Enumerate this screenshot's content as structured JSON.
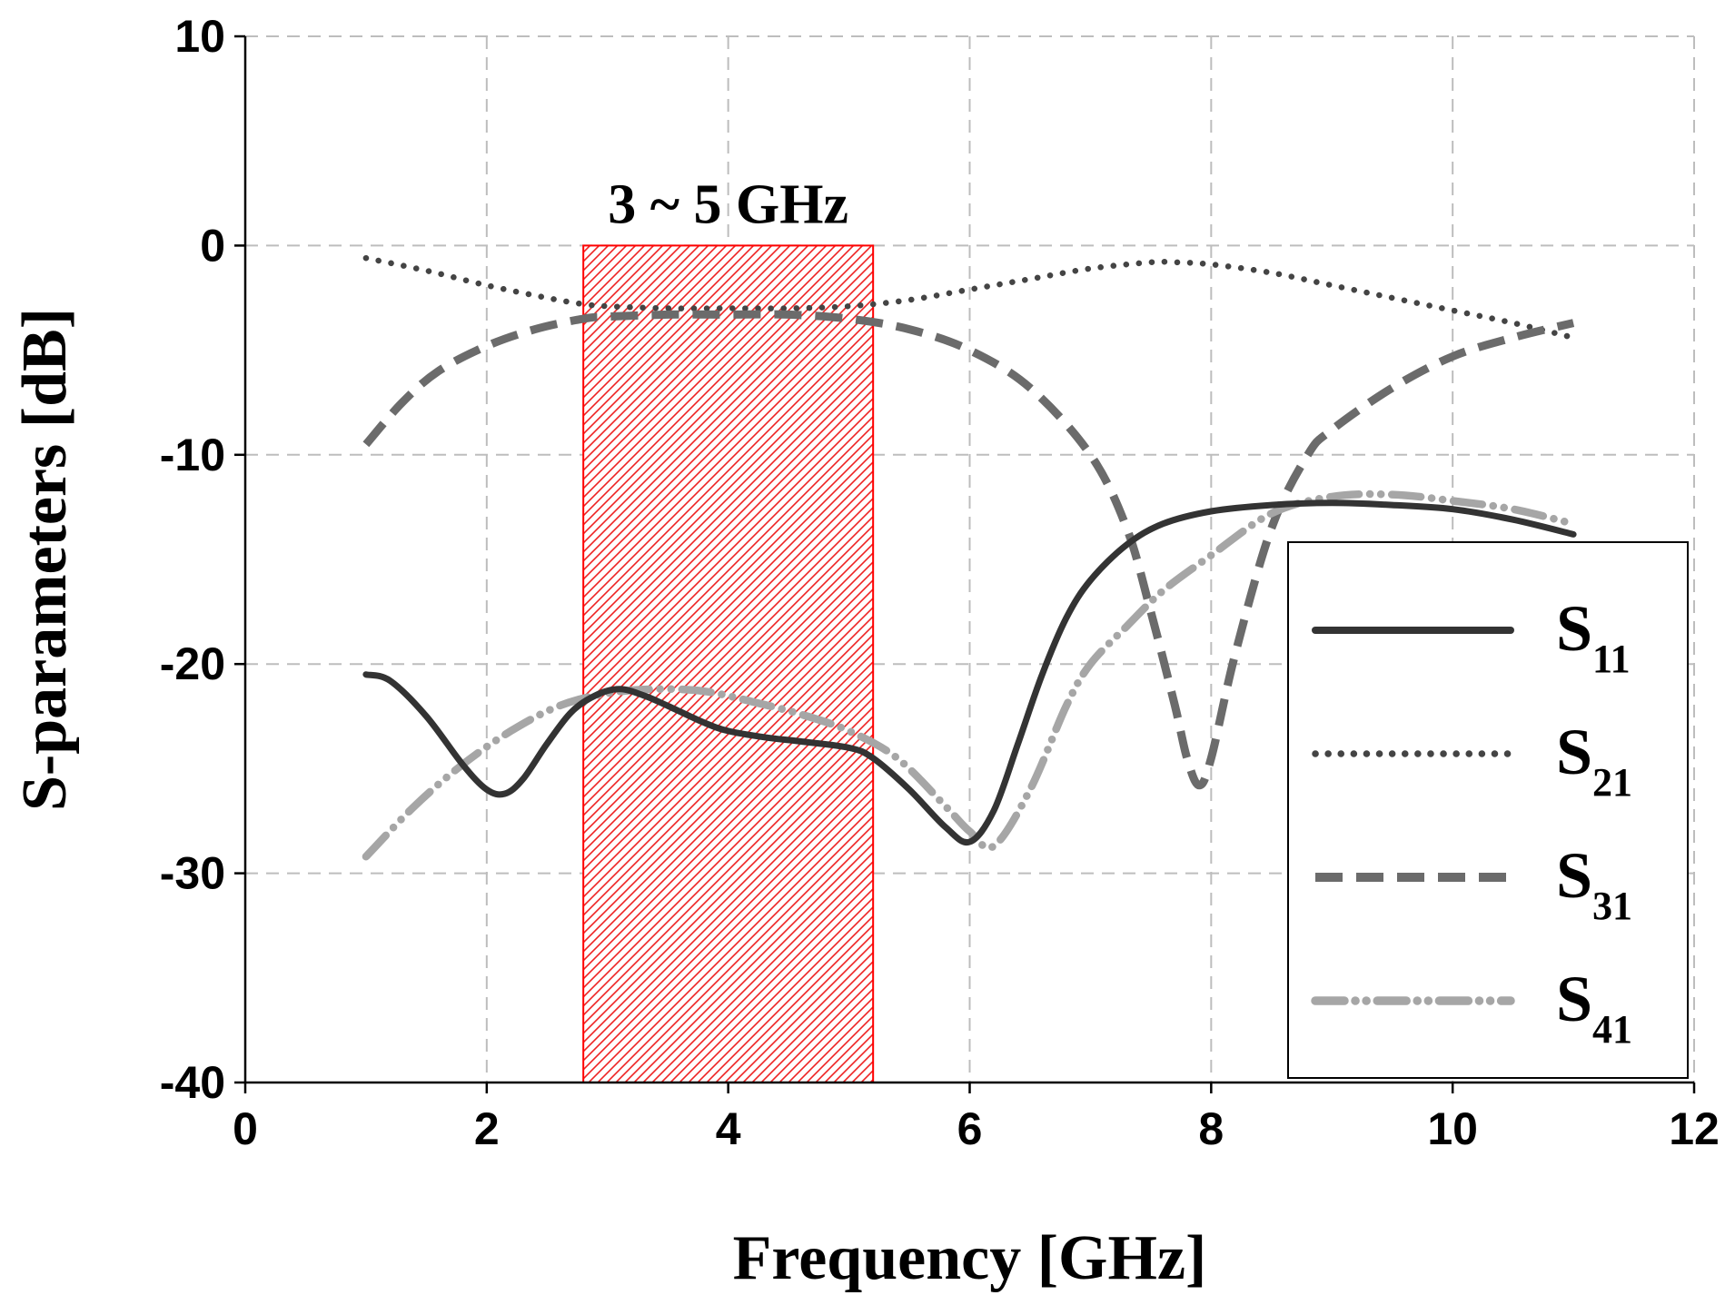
{
  "chart_data": {
    "type": "line",
    "title": "",
    "xlabel": "Frequency [GHz]",
    "ylabel": "S-parameters [dB]",
    "xlim": [
      0,
      12
    ],
    "ylim": [
      -40,
      10
    ],
    "xticks": [
      0,
      2,
      4,
      6,
      8,
      10,
      12
    ],
    "yticks": [
      -40,
      -30,
      -20,
      -10,
      0,
      10
    ],
    "grid": true,
    "legend_position": "right",
    "annotation": {
      "text": "3 ~ 5 GHz",
      "band": [
        2.8,
        5.2
      ],
      "color": "#ff0000"
    },
    "series": [
      {
        "name": "S11",
        "label_main": "S",
        "label_sub": "11",
        "style": "solid",
        "color": "#333333",
        "x": [
          1.0,
          1.2,
          1.5,
          1.8,
          2.0,
          2.15,
          2.3,
          2.5,
          2.7,
          2.9,
          3.1,
          3.3,
          3.5,
          3.8,
          4.0,
          4.3,
          4.6,
          5.0,
          5.2,
          5.5,
          5.8,
          6.0,
          6.2,
          6.4,
          6.6,
          6.8,
          7.0,
          7.3,
          7.6,
          8.0,
          8.5,
          9.0,
          9.5,
          10.0,
          10.5,
          11.0
        ],
        "y": [
          -20.5,
          -20.8,
          -22.5,
          -24.8,
          -26.0,
          -26.2,
          -25.5,
          -23.8,
          -22.3,
          -21.5,
          -21.2,
          -21.5,
          -22.0,
          -22.8,
          -23.2,
          -23.5,
          -23.7,
          -24.0,
          -24.5,
          -26.0,
          -27.8,
          -28.5,
          -27.0,
          -23.8,
          -20.5,
          -17.8,
          -16.0,
          -14.3,
          -13.3,
          -12.7,
          -12.4,
          -12.3,
          -12.4,
          -12.6,
          -13.1,
          -13.8
        ]
      },
      {
        "name": "S21",
        "label_main": "S",
        "label_sub": "21",
        "style": "dotted",
        "color": "#444444",
        "x": [
          1.0,
          1.5,
          2.0,
          2.5,
          2.8,
          3.0,
          3.5,
          4.0,
          4.5,
          5.0,
          5.5,
          6.0,
          6.5,
          7.0,
          7.5,
          7.7,
          8.0,
          8.5,
          9.0,
          9.5,
          10.0,
          10.5,
          11.0
        ],
        "y": [
          -0.6,
          -1.2,
          -1.9,
          -2.5,
          -2.8,
          -2.9,
          -3.0,
          -3.0,
          -3.0,
          -2.9,
          -2.6,
          -2.1,
          -1.6,
          -1.1,
          -0.8,
          -0.8,
          -0.9,
          -1.3,
          -1.9,
          -2.5,
          -3.1,
          -3.7,
          -4.4
        ]
      },
      {
        "name": "S31",
        "label_main": "S",
        "label_sub": "31",
        "style": "dashed",
        "color": "#6b6b6b",
        "x": [
          1.0,
          1.3,
          1.6,
          2.0,
          2.4,
          2.8,
          3.0,
          3.5,
          4.0,
          4.5,
          5.0,
          5.5,
          6.0,
          6.5,
          7.0,
          7.3,
          7.5,
          7.7,
          7.8,
          7.9,
          8.0,
          8.2,
          8.5,
          8.8,
          9.0,
          9.5,
          10.0,
          10.5,
          11.0
        ],
        "y": [
          -9.5,
          -7.5,
          -6.0,
          -4.8,
          -4.0,
          -3.5,
          -3.4,
          -3.3,
          -3.3,
          -3.3,
          -3.5,
          -4.0,
          -5.0,
          -6.8,
          -10.0,
          -13.5,
          -17.5,
          -22.0,
          -24.5,
          -25.8,
          -24.5,
          -19.5,
          -13.5,
          -10.0,
          -8.8,
          -6.8,
          -5.3,
          -4.4,
          -3.7
        ]
      },
      {
        "name": "S41",
        "label_main": "S",
        "label_sub": "41",
        "style": "dash-dot-dot",
        "color": "#a6a6a6",
        "x": [
          1.0,
          1.4,
          1.8,
          2.2,
          2.6,
          3.0,
          3.4,
          3.8,
          4.2,
          4.6,
          5.0,
          5.4,
          5.8,
          6.0,
          6.2,
          6.5,
          6.8,
          7.0,
          7.3,
          7.6,
          8.0,
          8.5,
          9.0,
          9.5,
          10.0,
          10.5,
          11.0
        ],
        "y": [
          -29.2,
          -26.8,
          -24.8,
          -23.2,
          -22.0,
          -21.4,
          -21.2,
          -21.3,
          -21.8,
          -22.4,
          -23.2,
          -24.5,
          -26.8,
          -28.0,
          -28.7,
          -26.0,
          -22.0,
          -20.0,
          -18.2,
          -16.5,
          -14.8,
          -12.8,
          -12.0,
          -11.9,
          -12.2,
          -12.6,
          -13.3
        ]
      }
    ]
  }
}
